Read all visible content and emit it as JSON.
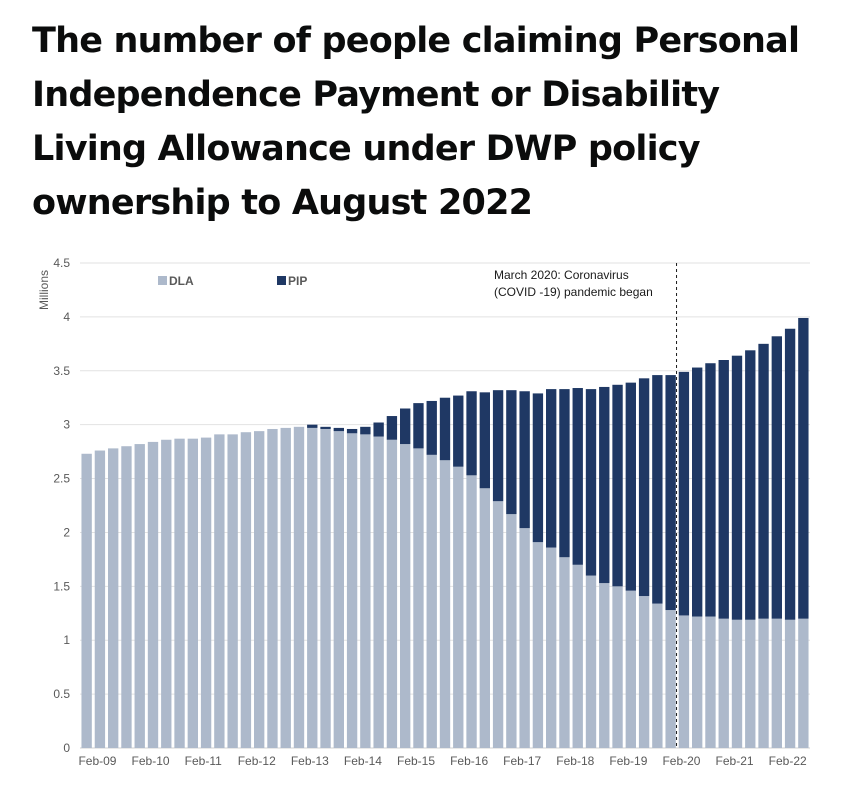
{
  "title": "The number of people claiming Personal Independence Payment or Disability Living Allowance under DWP policy ownership to August 2022",
  "chart_data": {
    "type": "bar",
    "stacked": true,
    "title": "The number of people claiming Personal Independence Payment or Disability Living Allowance under DWP policy ownership to August 2022",
    "xlabel": "",
    "ylabel": "Millions",
    "ylim": [
      0,
      4.5
    ],
    "yticks": [
      0,
      0.5,
      1,
      1.5,
      2,
      2.5,
      3,
      3.5,
      4,
      4.5
    ],
    "ytick_labels": [
      "0",
      "0.5",
      "1",
      "1.5",
      "2",
      "2.5",
      "3",
      "3.5",
      "4",
      "4.5"
    ],
    "grid": true,
    "legend_position": "top-left",
    "categories": [
      "Feb-09",
      "May-09",
      "Aug-09",
      "Nov-09",
      "Feb-10",
      "May-10",
      "Aug-10",
      "Nov-10",
      "Feb-11",
      "May-11",
      "Aug-11",
      "Nov-11",
      "Feb-12",
      "May-12",
      "Aug-12",
      "Nov-12",
      "Feb-13",
      "May-13",
      "Aug-13",
      "Nov-13",
      "Feb-14",
      "May-14",
      "Aug-14",
      "Nov-14",
      "Feb-15",
      "May-15",
      "Aug-15",
      "Nov-15",
      "Feb-16",
      "May-16",
      "Aug-16",
      "Nov-16",
      "Feb-17",
      "May-17",
      "Aug-17",
      "Nov-17",
      "Feb-18",
      "May-18",
      "Aug-18",
      "Nov-18",
      "Feb-19",
      "May-19",
      "Aug-19",
      "Nov-19",
      "Feb-20",
      "May-20",
      "Aug-20",
      "Nov-20",
      "Feb-21",
      "May-21",
      "Aug-21",
      "Nov-21",
      "Feb-22",
      "May-22",
      "Aug-22"
    ],
    "xtick_labels": [
      "Feb-09",
      "Feb-10",
      "Feb-11",
      "Feb-12",
      "Feb-13",
      "Feb-14",
      "Feb-15",
      "Feb-16",
      "Feb-17",
      "Feb-18",
      "Feb-19",
      "Feb-20",
      "Feb-21",
      "Feb-22"
    ],
    "series": [
      {
        "name": "DLA",
        "color": "#adb9cb",
        "values": [
          2.73,
          2.76,
          2.78,
          2.8,
          2.82,
          2.84,
          2.86,
          2.87,
          2.87,
          2.88,
          2.91,
          2.91,
          2.93,
          2.94,
          2.96,
          2.97,
          2.98,
          2.97,
          2.96,
          2.94,
          2.92,
          2.91,
          2.89,
          2.86,
          2.82,
          2.78,
          2.72,
          2.67,
          2.61,
          2.53,
          2.41,
          2.29,
          2.17,
          2.04,
          1.91,
          1.86,
          1.77,
          1.7,
          1.6,
          1.53,
          1.5,
          1.46,
          1.41,
          1.34,
          1.28,
          1.23,
          1.22,
          1.22,
          1.2,
          1.19,
          1.19,
          1.2,
          1.2,
          1.19,
          1.2
        ]
      },
      {
        "name": "PIP",
        "color": "#1f3864",
        "values": [
          0,
          0,
          0,
          0,
          0,
          0,
          0,
          0,
          0,
          0,
          0,
          0,
          0,
          0,
          0,
          0,
          0,
          0.03,
          0.02,
          0.03,
          0.04,
          0.07,
          0.13,
          0.22,
          0.33,
          0.42,
          0.5,
          0.58,
          0.66,
          0.78,
          0.89,
          1.03,
          1.15,
          1.27,
          1.38,
          1.47,
          1.56,
          1.64,
          1.73,
          1.82,
          1.87,
          1.93,
          2.02,
          2.12,
          2.18,
          2.26,
          2.31,
          2.35,
          2.4,
          2.45,
          2.5,
          2.55,
          2.62,
          2.7,
          2.79
        ]
      }
    ],
    "annotations": [
      {
        "text_lines": [
          "March 2020: Coronavirus",
          "(COVID -19) pandemic began"
        ],
        "after_category": "Feb-20",
        "line_style": "dashed"
      }
    ]
  }
}
